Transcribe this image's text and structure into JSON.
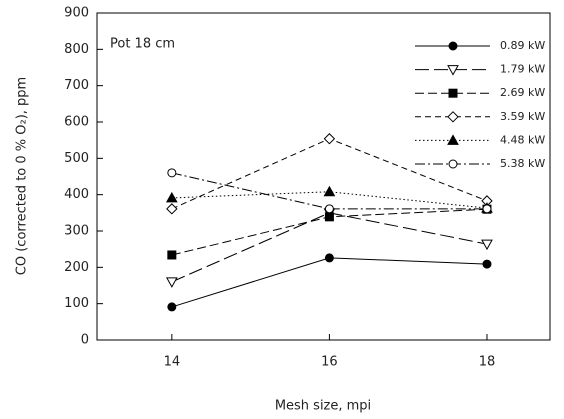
{
  "chart_data": {
    "type": "line",
    "annotation": "Pot 18 cm",
    "x_label": "Mesh size, mpi",
    "y_label": "CO (corrected to 0 % O₂), ppm",
    "x": [
      14,
      16,
      18
    ],
    "xlim": [
      13.05,
      18.8
    ],
    "xticks": [
      14,
      16,
      18
    ],
    "ylim": [
      0,
      900
    ],
    "yticks": [
      0,
      100,
      200,
      300,
      400,
      500,
      600,
      700,
      800,
      900
    ],
    "grid": false,
    "legend": "upper right",
    "series": [
      {
        "name": "0.89 kW",
        "color": "#000000",
        "dash": "none",
        "marker": "circle",
        "filled": true,
        "values": [
          91,
          226,
          209
        ]
      },
      {
        "name": "1.79 kW",
        "color": "#000000",
        "dash": "14 5",
        "marker": "triangle-down",
        "filled": false,
        "values": [
          160,
          350,
          264
        ]
      },
      {
        "name": "2.69 kW",
        "color": "#000000",
        "dash": "9 4",
        "marker": "square",
        "filled": true,
        "values": [
          234,
          339,
          360
        ]
      },
      {
        "name": "3.59 kW",
        "color": "#000000",
        "dash": "6 4",
        "marker": "diamond",
        "filled": false,
        "values": [
          361,
          554,
          383
        ]
      },
      {
        "name": "4.48 kW",
        "color": "#000000",
        "dash": "1.5 2.5",
        "marker": "triangle-up",
        "filled": true,
        "values": [
          391,
          408,
          363
        ]
      },
      {
        "name": "5.38 kW",
        "color": "#000000",
        "dash": "10 3 2 3",
        "marker": "circle",
        "filled": false,
        "values": [
          460,
          361,
          361
        ]
      }
    ]
  }
}
